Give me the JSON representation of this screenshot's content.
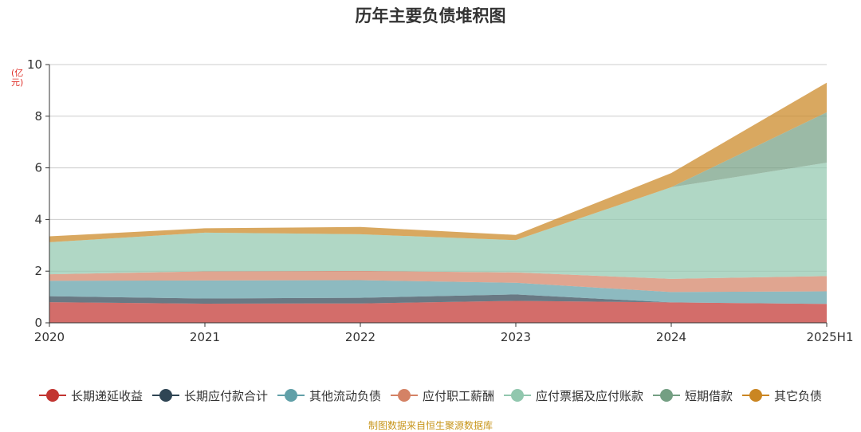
{
  "title": "历年主要负债堆积图",
  "unit_label": "(亿元)",
  "source_note": "制图数据来自恒生聚源数据库",
  "chart_data": {
    "type": "area",
    "stacked": true,
    "categories": [
      "2020",
      "2021",
      "2022",
      "2023",
      "2024",
      "2025H1"
    ],
    "ylim": [
      0,
      10
    ],
    "yticks": [
      0,
      2,
      4,
      6,
      8,
      10
    ],
    "grid": true,
    "legend_position": "bottom",
    "series": [
      {
        "name": "长期递延收益",
        "color": "#c23531",
        "values": [
          0.8,
          0.74,
          0.75,
          0.85,
          0.79,
          0.73
        ]
      },
      {
        "name": "长期应付款合计",
        "color": "#2f4554",
        "values": [
          0.23,
          0.2,
          0.22,
          0.25,
          0.0,
          0.0
        ]
      },
      {
        "name": "其他流动负债",
        "color": "#61a0a8",
        "values": [
          0.6,
          0.7,
          0.68,
          0.45,
          0.4,
          0.49
        ]
      },
      {
        "name": "应付职工薪酬",
        "color": "#d48265",
        "values": [
          0.25,
          0.35,
          0.36,
          0.4,
          0.51,
          0.59
        ]
      },
      {
        "name": "应付票据及应付账款",
        "color": "#91c7ae",
        "values": [
          1.24,
          1.5,
          1.42,
          1.25,
          3.55,
          4.39
        ]
      },
      {
        "name": "短期借款",
        "color": "#749f83",
        "values": [
          0.0,
          0.0,
          0.0,
          0.0,
          0.0,
          1.95
        ]
      },
      {
        "name": "其它负债",
        "color": "#ca8622",
        "values": [
          0.23,
          0.17,
          0.28,
          0.2,
          0.55,
          1.15
        ]
      }
    ]
  }
}
